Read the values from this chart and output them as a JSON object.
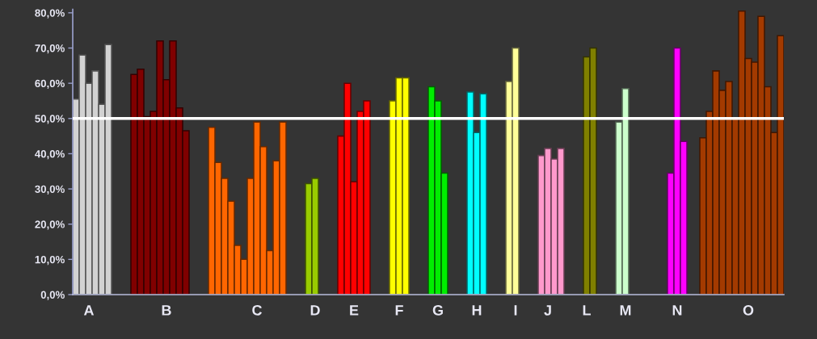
{
  "chart_data": {
    "type": "bar",
    "categories": [
      null,
      null,
      "A",
      null,
      null,
      null,
      null,
      null,
      null,
      null,
      null,
      null,
      null,
      null,
      "B",
      null,
      null,
      null,
      null,
      null,
      null,
      null,
      null,
      null,
      null,
      null,
      null,
      null,
      "C",
      null,
      null,
      null,
      null,
      null,
      null,
      null,
      null,
      "D",
      null,
      null,
      null,
      null,
      null,
      "E",
      null,
      null,
      null,
      null,
      null,
      null,
      "F",
      null,
      null,
      null,
      null,
      null,
      "G",
      null,
      null,
      null,
      null,
      null,
      "H",
      null,
      null,
      null,
      null,
      null,
      "I",
      null,
      null,
      null,
      null,
      "J",
      null,
      null,
      null,
      null,
      null,
      "L",
      null,
      null,
      null,
      null,
      null,
      "M",
      null,
      null,
      null,
      null,
      null,
      null,
      null,
      "N",
      null,
      null,
      null,
      null,
      null,
      null,
      null,
      null,
      null,
      null,
      "O",
      null,
      null,
      null,
      null,
      null
    ],
    "values": [
      55.5,
      68,
      60,
      63.5,
      54,
      71,
      null,
      null,
      null,
      62.5,
      64,
      50.5,
      52,
      72,
      61,
      72,
      53,
      46.5,
      null,
      null,
      null,
      47.5,
      37.5,
      33,
      26.5,
      14,
      10,
      33,
      49,
      42,
      12.5,
      38,
      49,
      null,
      null,
      null,
      31.5,
      33,
      null,
      null,
      null,
      45,
      60,
      32,
      52,
      55,
      null,
      null,
      null,
      55,
      61.5,
      61.5,
      null,
      null,
      null,
      59,
      55,
      34.5,
      null,
      null,
      null,
      57.5,
      46,
      57,
      null,
      null,
      null,
      60.5,
      70,
      null,
      null,
      null,
      39.5,
      41.5,
      38.5,
      41.5,
      null,
      null,
      null,
      67.5,
      70,
      null,
      null,
      null,
      49,
      58.5,
      null,
      null,
      null,
      null,
      null,
      null,
      34.5,
      70,
      43.5,
      null,
      null,
      44.5,
      52,
      63.5,
      58,
      60.5,
      50,
      80.5,
      67,
      66,
      79,
      59,
      46,
      73.5
    ],
    "colors": [
      "#d2d2d2",
      "#d2d2d2",
      "#d2d2d2",
      "#d2d2d2",
      "#d2d2d2",
      "#d2d2d2",
      null,
      null,
      null,
      "#800000",
      "#800000",
      "#800000",
      "#800000",
      "#800000",
      "#800000",
      "#800000",
      "#800000",
      "#800000",
      null,
      null,
      null,
      "#ff6600",
      "#ff6600",
      "#ff6600",
      "#ff6600",
      "#ff6600",
      "#ff6600",
      "#ff6600",
      "#ff6600",
      "#ff6600",
      "#ff6600",
      "#ff6600",
      "#ff6600",
      null,
      null,
      null,
      "#99cc00",
      "#99cc00",
      null,
      null,
      null,
      "#ff0000",
      "#ff0000",
      "#ff0000",
      "#ff0000",
      "#ff0000",
      null,
      null,
      null,
      "#ffff00",
      "#ffff00",
      "#ffff00",
      null,
      null,
      null,
      "#00ee00",
      "#00ee00",
      "#00ee00",
      null,
      null,
      null,
      "#00ffff",
      "#00ffff",
      "#00ffff",
      null,
      null,
      null,
      "#ffff99",
      "#ffff99",
      null,
      null,
      null,
      "#ff99cc",
      "#ff99cc",
      "#ff99cc",
      "#ff99cc",
      null,
      null,
      null,
      "#808000",
      "#808000",
      null,
      null,
      null,
      "#ccffcc",
      "#ccffcc",
      null,
      null,
      null,
      null,
      null,
      null,
      "#ff00ff",
      "#ff00ff",
      "#ff00ff",
      null,
      null,
      "#a33a00",
      "#a33a00",
      "#a33a00",
      "#a33a00",
      "#a33a00",
      "#a33a00",
      "#a33a00",
      "#a33a00",
      "#a33a00",
      "#a33a00",
      "#a33a00",
      "#a33a00",
      "#a33a00"
    ],
    "ylim": [
      0,
      81
    ],
    "yticks": [
      {
        "value": 0,
        "label": "0,0%"
      },
      {
        "value": 10,
        "label": "10,0%"
      },
      {
        "value": 20,
        "label": "20,0%"
      },
      {
        "value": 30,
        "label": "30,0%"
      },
      {
        "value": 40,
        "label": "40,0%"
      },
      {
        "value": 50,
        "label": "50,0%"
      },
      {
        "value": 60,
        "label": "60,0%"
      },
      {
        "value": 70,
        "label": "70,0%"
      },
      {
        "value": 80,
        "label": "80,0%"
      }
    ],
    "ref_lines": [
      {
        "axis": "y",
        "value": 50,
        "color": "#ffffff",
        "line_style": "solid"
      }
    ]
  }
}
